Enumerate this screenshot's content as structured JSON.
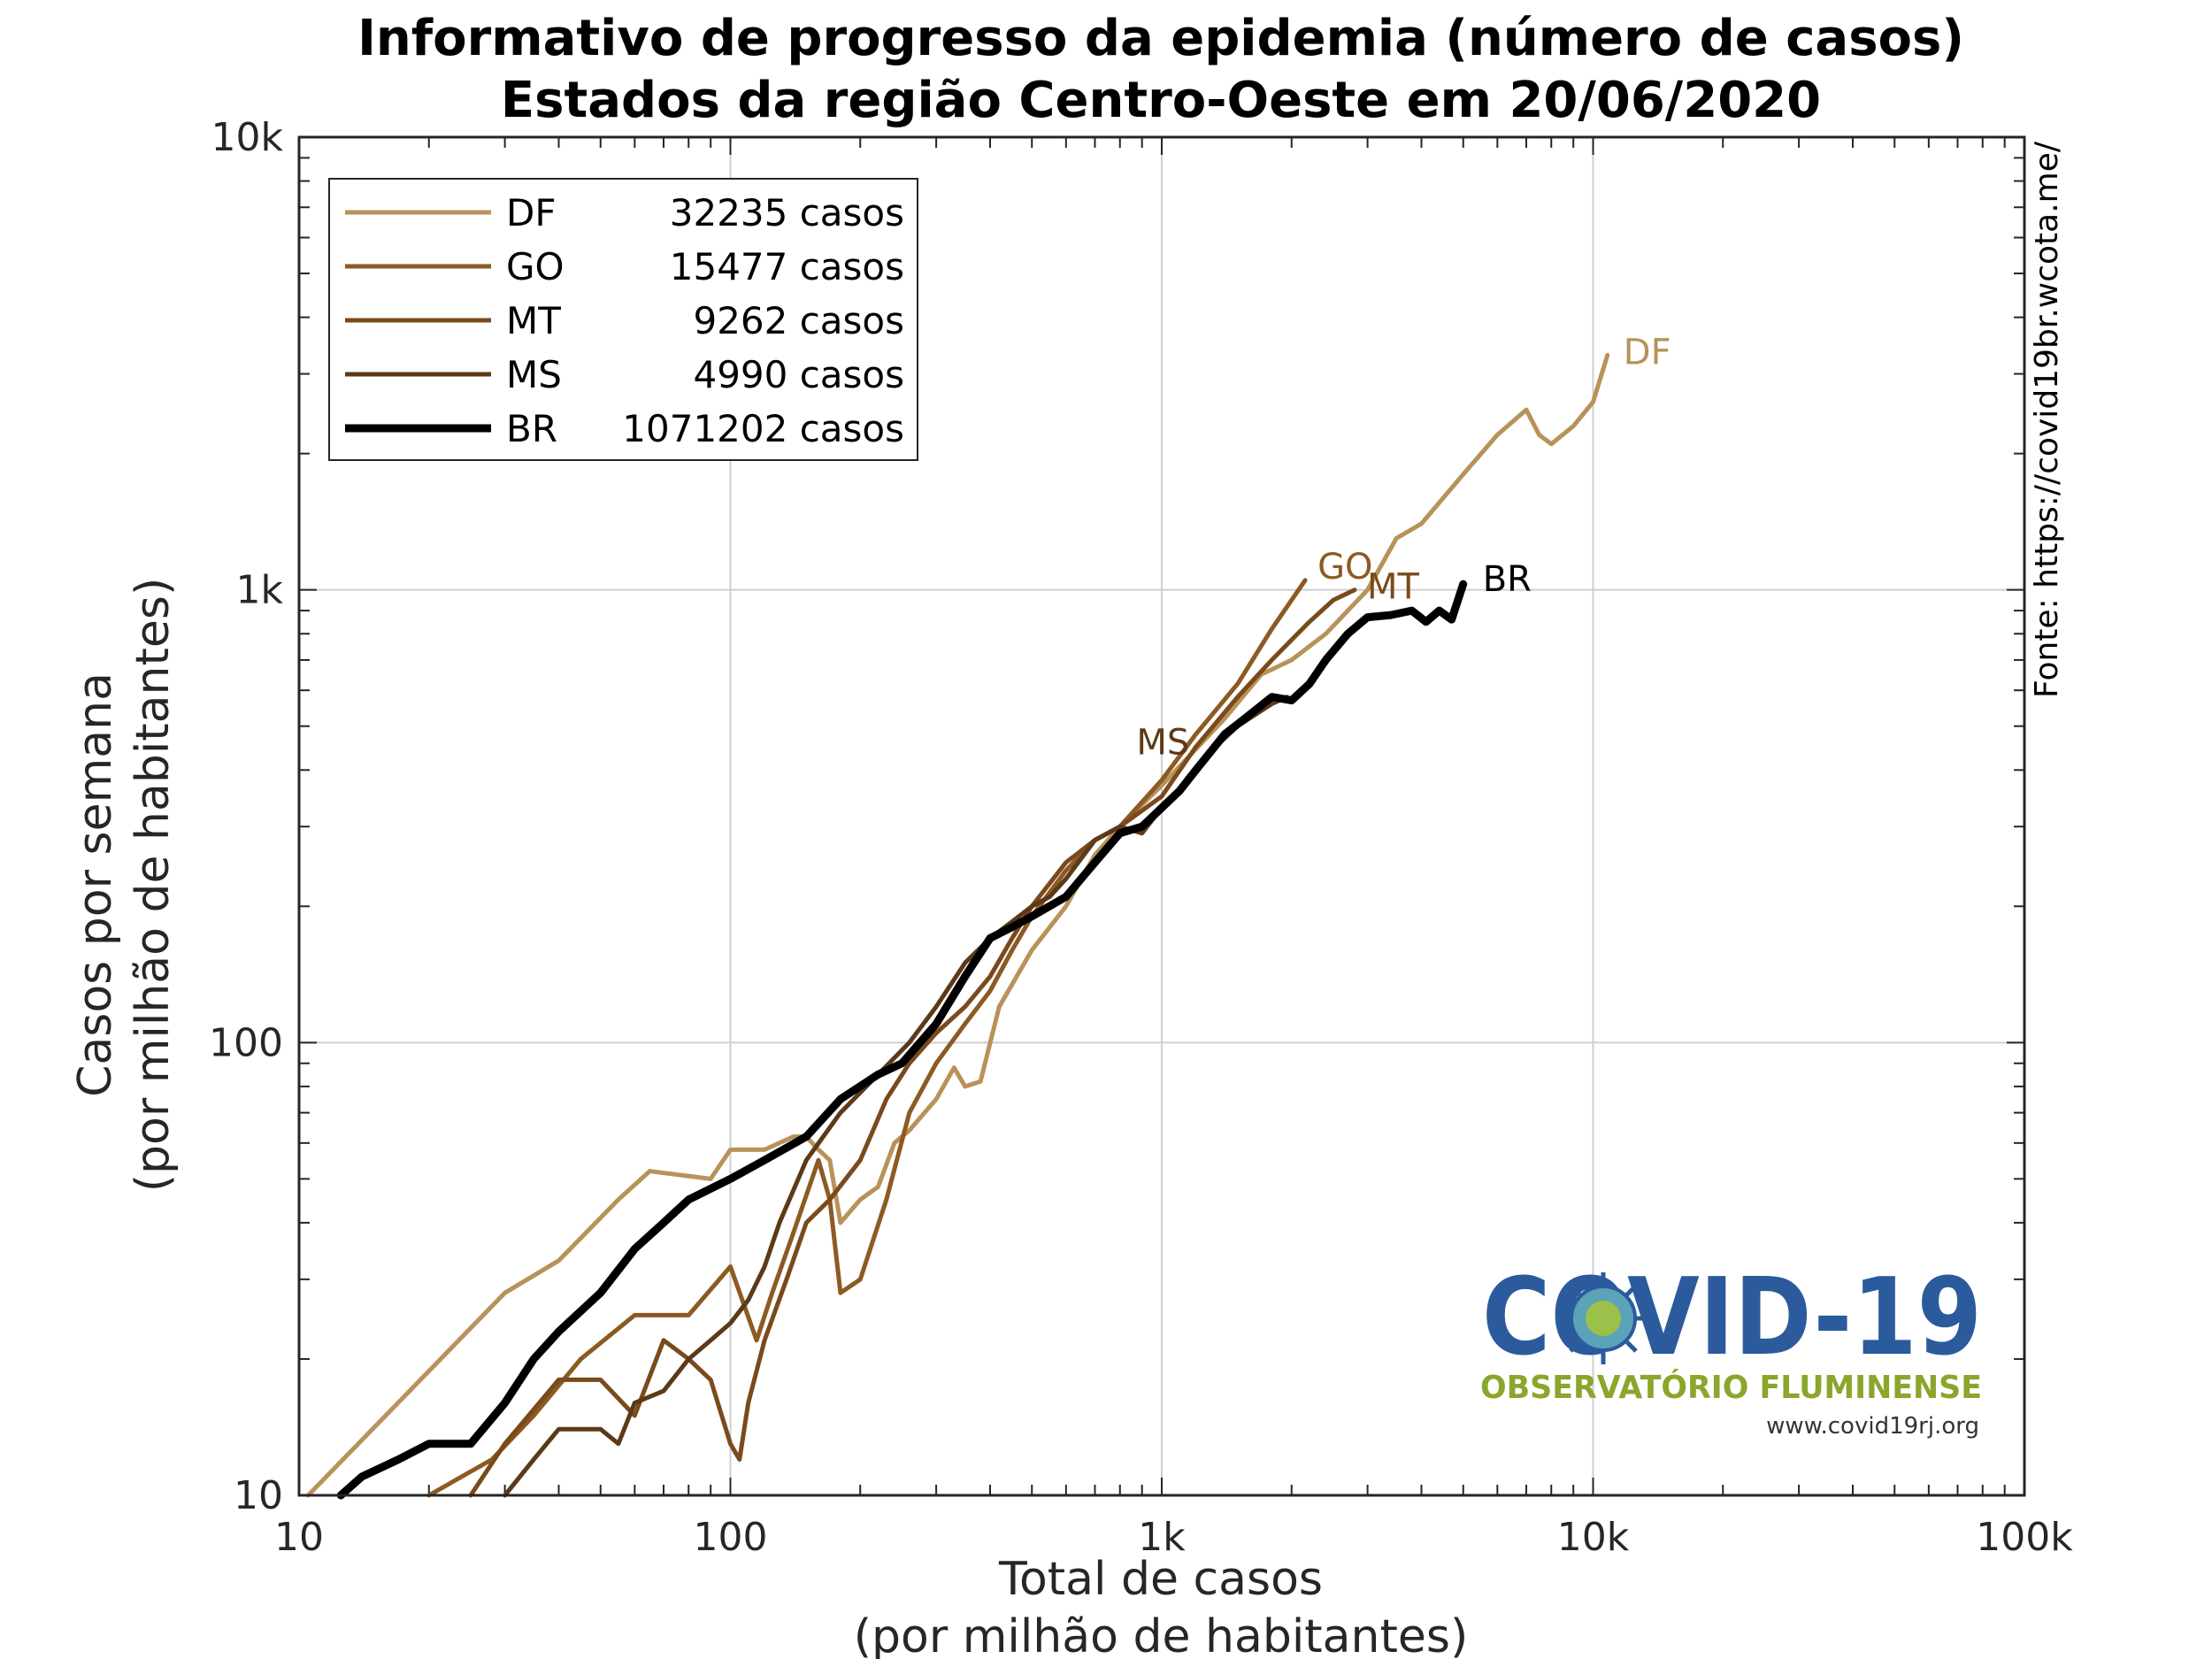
{
  "chart_data": {
    "type": "line",
    "title": "Informativo de progresso da epidemia (número de casos)",
    "subtitle": "Estados da região Centro-Oeste em 20/06/2020",
    "xlabel": "Total de casos",
    "xlabel2": "(por milhão de habitantes)",
    "ylabel": "Casos por semana",
    "ylabel2": "(por milhão de habitantes)",
    "xscale": "log",
    "yscale": "log",
    "xlim": [
      10,
      100000
    ],
    "ylim": [
      10,
      10000
    ],
    "x_ticks": [
      10,
      100,
      1000,
      10000,
      100000
    ],
    "x_tick_labels": [
      "10",
      "100",
      "1k",
      "10k",
      "100k"
    ],
    "y_ticks": [
      10,
      100,
      1000,
      10000
    ],
    "y_tick_labels": [
      "10",
      "100",
      "1k",
      "10k"
    ],
    "grid": true,
    "legend_position": "top-left",
    "source_text": "Fonte: https://covid19br.wcota.me/",
    "series": [
      {
        "name": "DF",
        "legend_value": "32235 casos",
        "end_label": "DF",
        "color": "#b89259",
        "points": [
          [
            10.5,
            10
          ],
          [
            30,
            28
          ],
          [
            40,
            33
          ],
          [
            55,
            45
          ],
          [
            65,
            52
          ],
          [
            90,
            50
          ],
          [
            100,
            58
          ],
          [
            120,
            58
          ],
          [
            140,
            62
          ],
          [
            150,
            62
          ],
          [
            160,
            58
          ],
          [
            170,
            55
          ],
          [
            180,
            40
          ],
          [
            200,
            45
          ],
          [
            220,
            48
          ],
          [
            240,
            60
          ],
          [
            260,
            64
          ],
          [
            300,
            75
          ],
          [
            330,
            88
          ],
          [
            350,
            80
          ],
          [
            380,
            82
          ],
          [
            420,
            120
          ],
          [
            500,
            160
          ],
          [
            600,
            200
          ],
          [
            700,
            260
          ],
          [
            800,
            300
          ],
          [
            1000,
            370
          ],
          [
            1400,
            520
          ],
          [
            1700,
            650
          ],
          [
            2000,
            700
          ],
          [
            2400,
            800
          ],
          [
            3000,
            1000
          ],
          [
            3500,
            1300
          ],
          [
            4000,
            1400
          ],
          [
            5000,
            1800
          ],
          [
            6000,
            2200
          ],
          [
            7000,
            2500
          ],
          [
            7500,
            2200
          ],
          [
            8000,
            2100
          ],
          [
            9000,
            2300
          ],
          [
            10000,
            2600
          ],
          [
            10800,
            3300
          ]
        ]
      },
      {
        "name": "GO",
        "legend_value": "15477 casos",
        "end_label": "GO",
        "color": "#8c5a22",
        "points": [
          [
            20,
            10
          ],
          [
            28,
            12
          ],
          [
            35,
            15
          ],
          [
            45,
            20
          ],
          [
            60,
            25
          ],
          [
            80,
            25
          ],
          [
            100,
            32
          ],
          [
            115,
            22
          ],
          [
            125,
            28
          ],
          [
            140,
            38
          ],
          [
            160,
            55
          ],
          [
            170,
            45
          ],
          [
            180,
            28
          ],
          [
            200,
            30
          ],
          [
            230,
            45
          ],
          [
            260,
            70
          ],
          [
            300,
            90
          ],
          [
            350,
            110
          ],
          [
            400,
            130
          ],
          [
            450,
            160
          ],
          [
            500,
            190
          ],
          [
            600,
            240
          ],
          [
            700,
            280
          ],
          [
            800,
            300
          ],
          [
            1000,
            380
          ],
          [
            1200,
            480
          ],
          [
            1500,
            620
          ],
          [
            1800,
            820
          ],
          [
            2150,
            1050
          ]
        ]
      },
      {
        "name": "MT",
        "legend_value": "9262 casos",
        "end_label": "MT",
        "color": "#7a4a1c",
        "points": [
          [
            25,
            10
          ],
          [
            30,
            13
          ],
          [
            40,
            18
          ],
          [
            50,
            18
          ],
          [
            60,
            15
          ],
          [
            70,
            22
          ],
          [
            80,
            20
          ],
          [
            90,
            18
          ],
          [
            100,
            13
          ],
          [
            105,
            12
          ],
          [
            110,
            16
          ],
          [
            120,
            22
          ],
          [
            135,
            30
          ],
          [
            150,
            40
          ],
          [
            170,
            45
          ],
          [
            200,
            55
          ],
          [
            230,
            75
          ],
          [
            260,
            90
          ],
          [
            300,
            105
          ],
          [
            350,
            120
          ],
          [
            400,
            140
          ],
          [
            450,
            170
          ],
          [
            500,
            200
          ],
          [
            600,
            250
          ],
          [
            700,
            280
          ],
          [
            800,
            300
          ],
          [
            1000,
            350
          ],
          [
            1200,
            450
          ],
          [
            1500,
            580
          ],
          [
            1800,
            700
          ],
          [
            2200,
            850
          ],
          [
            2500,
            950
          ],
          [
            2800,
            1000
          ]
        ]
      },
      {
        "name": "MS",
        "legend_value": "4990 casos",
        "end_label": "MS",
        "color": "#5c3a17",
        "points": [
          [
            30,
            10
          ],
          [
            35,
            12
          ],
          [
            40,
            14
          ],
          [
            50,
            14
          ],
          [
            55,
            13
          ],
          [
            60,
            16
          ],
          [
            70,
            17
          ],
          [
            80,
            20
          ],
          [
            90,
            22
          ],
          [
            100,
            24
          ],
          [
            110,
            27
          ],
          [
            120,
            32
          ],
          [
            130,
            40
          ],
          [
            150,
            55
          ],
          [
            180,
            70
          ],
          [
            220,
            85
          ],
          [
            260,
            100
          ],
          [
            300,
            120
          ],
          [
            350,
            150
          ],
          [
            400,
            170
          ],
          [
            450,
            185
          ],
          [
            500,
            200
          ],
          [
            550,
            210
          ],
          [
            600,
            230
          ],
          [
            700,
            280
          ],
          [
            800,
            300
          ],
          [
            900,
            290
          ],
          [
            1000,
            330
          ],
          [
            1100,
            360
          ],
          [
            1300,
            440
          ],
          [
            1500,
            500
          ],
          [
            1800,
            560
          ],
          [
            1950,
            580
          ]
        ]
      },
      {
        "name": "BR",
        "legend_value": "1071202 casos",
        "end_label": "BR",
        "color": "#000000",
        "points": [
          [
            12.5,
            10
          ],
          [
            14,
            11
          ],
          [
            17,
            12
          ],
          [
            20,
            13
          ],
          [
            25,
            13
          ],
          [
            30,
            16
          ],
          [
            35,
            20
          ],
          [
            40,
            23
          ],
          [
            50,
            28
          ],
          [
            60,
            35
          ],
          [
            70,
            40
          ],
          [
            80,
            45
          ],
          [
            100,
            50
          ],
          [
            120,
            55
          ],
          [
            150,
            62
          ],
          [
            180,
            75
          ],
          [
            220,
            85
          ],
          [
            250,
            90
          ],
          [
            300,
            110
          ],
          [
            350,
            140
          ],
          [
            400,
            170
          ],
          [
            450,
            180
          ],
          [
            500,
            190
          ],
          [
            600,
            210
          ],
          [
            700,
            250
          ],
          [
            800,
            290
          ],
          [
            900,
            300
          ],
          [
            1000,
            330
          ],
          [
            1100,
            360
          ],
          [
            1200,
            400
          ],
          [
            1400,
            480
          ],
          [
            1600,
            530
          ],
          [
            1800,
            580
          ],
          [
            2000,
            570
          ],
          [
            2200,
            620
          ],
          [
            2400,
            700
          ],
          [
            2700,
            800
          ],
          [
            3000,
            870
          ],
          [
            3400,
            880
          ],
          [
            3800,
            900
          ],
          [
            4100,
            850
          ],
          [
            4400,
            900
          ],
          [
            4700,
            860
          ],
          [
            5000,
            1030
          ]
        ]
      }
    ]
  },
  "logo": {
    "title": "COVID-19",
    "subtitle": "OBSERVATÓRIO FLUMINENSE",
    "url": "www.covid19rj.org"
  }
}
